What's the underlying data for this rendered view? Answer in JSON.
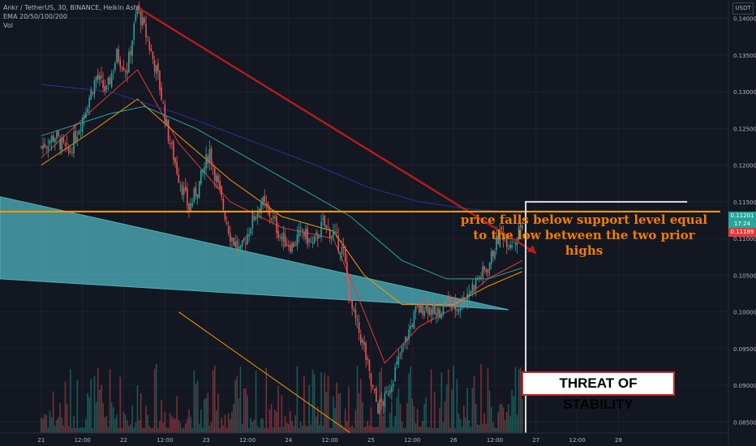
{
  "header": {
    "symbol_line": "Ankr / TetherUS, 30, BINANCE, Heikin Ashi",
    "ema_line": "EMA 20/50/100/200",
    "vol_line": "Vol",
    "currency": "USDT"
  },
  "price_tags": {
    "last_price": "0.11201",
    "countdown": "17:24",
    "ema_price": "0.11189"
  },
  "annotations": {
    "support_note_line1": "price falls below support level equal",
    "support_note_line2": "to the low between the two prior highs",
    "threat_label": "THREAT OF STABILITY"
  },
  "colors": {
    "background": "#131722",
    "up": "#26a69a",
    "down": "#ef5350",
    "resistance_line": "#b71c1c",
    "support_line": "#ff9800",
    "wedge_fill": "#4fb3bf",
    "ema20": "#e53935",
    "ema50": "#ff9800",
    "ema100": "#26a69a",
    "ema200": "#283593",
    "target_box": "#e0e0e0"
  },
  "chart_data": {
    "type": "candlestick",
    "style": "Heikin Ashi",
    "timeframe": "30",
    "exchange": "BINANCE",
    "y_axis": {
      "ticks": [
        "0.14000",
        "0.13500",
        "0.13000",
        "0.12500",
        "0.12000",
        "0.11500",
        "0.11000",
        "0.10500",
        "0.10000",
        "0.09500",
        "0.09000",
        "0.08500"
      ],
      "ylim": [
        0.0835,
        0.1425
      ]
    },
    "x_axis": {
      "ticks": [
        "21",
        "12:00",
        "22",
        "12:00",
        "23",
        "12:00",
        "24",
        "12:00",
        "25",
        "12:00",
        "26",
        "12:00",
        "27",
        "12:00",
        "28"
      ],
      "xlim": [
        -12,
        200
      ]
    },
    "price_path": [
      [
        0,
        0.1225
      ],
      [
        4,
        0.124
      ],
      [
        8,
        0.1215
      ],
      [
        12,
        0.1265
      ],
      [
        16,
        0.132
      ],
      [
        19,
        0.13
      ],
      [
        22,
        0.135
      ],
      [
        25,
        0.133
      ],
      [
        28,
        0.1415
      ],
      [
        31,
        0.137
      ],
      [
        34,
        0.132
      ],
      [
        37,
        0.124
      ],
      [
        40,
        0.1185
      ],
      [
        43,
        0.114
      ],
      [
        46,
        0.1175
      ],
      [
        49,
        0.122
      ],
      [
        52,
        0.116
      ],
      [
        55,
        0.1105
      ],
      [
        58,
        0.108
      ],
      [
        61,
        0.112
      ],
      [
        64,
        0.115
      ],
      [
        67,
        0.113
      ],
      [
        70,
        0.11
      ],
      [
        73,
        0.109
      ],
      [
        76,
        0.111
      ],
      [
        79,
        0.109
      ],
      [
        82,
        0.112
      ],
      [
        85,
        0.1105
      ],
      [
        88,
        0.108
      ],
      [
        90,
        0.101
      ],
      [
        92,
        0.098
      ],
      [
        94,
        0.095
      ],
      [
        96,
        0.09
      ],
      [
        98,
        0.087
      ],
      [
        100,
        0.088
      ],
      [
        103,
        0.092
      ],
      [
        106,
        0.096
      ],
      [
        109,
        0.1
      ],
      [
        112,
        0.101
      ],
      [
        115,
        0.0995
      ],
      [
        118,
        0.1015
      ],
      [
        121,
        0.1005
      ],
      [
        124,
        0.1025
      ],
      [
        127,
        0.1045
      ],
      [
        130,
        0.106
      ],
      [
        132,
        0.109
      ],
      [
        134,
        0.111
      ],
      [
        136,
        0.1095
      ],
      [
        138,
        0.11
      ],
      [
        140,
        0.112
      ]
    ],
    "ema_series": [
      {
        "values": [
          [
            0,
            0.121
          ],
          [
            16,
            0.128
          ],
          [
            28,
            0.133
          ],
          [
            40,
            0.123
          ],
          [
            55,
            0.115
          ],
          [
            70,
            0.1115
          ],
          [
            85,
            0.11
          ],
          [
            94,
            0.1
          ],
          [
            100,
            0.093
          ],
          [
            110,
            0.098
          ],
          [
            120,
            0.1005
          ],
          [
            130,
            0.1045
          ],
          [
            140,
            0.107
          ]
        ]
      },
      {
        "values": [
          [
            0,
            0.12
          ],
          [
            16,
            0.125
          ],
          [
            28,
            0.129
          ],
          [
            40,
            0.124
          ],
          [
            55,
            0.118
          ],
          [
            70,
            0.113
          ],
          [
            85,
            0.111
          ],
          [
            94,
            0.105
          ],
          [
            105,
            0.101
          ],
          [
            120,
            0.101
          ],
          [
            130,
            0.1035
          ],
          [
            140,
            0.1055
          ]
        ]
      },
      {
        "values": [
          [
            0,
            0.124
          ],
          [
            20,
            0.127
          ],
          [
            30,
            0.128
          ],
          [
            45,
            0.125
          ],
          [
            60,
            0.121
          ],
          [
            75,
            0.117
          ],
          [
            90,
            0.113
          ],
          [
            105,
            0.107
          ],
          [
            118,
            0.1045
          ],
          [
            130,
            0.1045
          ],
          [
            140,
            0.106
          ]
        ]
      },
      {
        "values": [
          [
            0,
            0.131
          ],
          [
            20,
            0.13
          ],
          [
            40,
            0.127
          ],
          [
            60,
            0.1235
          ],
          [
            80,
            0.12
          ],
          [
            95,
            0.117
          ],
          [
            110,
            0.115
          ],
          [
            125,
            0.114
          ],
          [
            140,
            0.1135
          ]
        ]
      }
    ],
    "drawings": {
      "resistance_trendline": [
        [
          28,
          0.1415
        ],
        [
          144,
          0.108
        ]
      ],
      "support_level": 0.11367,
      "wedge": {
        "upper": [
          [
            -12,
            0.1157
          ],
          [
            136,
            0.1003
          ]
        ],
        "lower": [
          [
            -12,
            0.1045
          ],
          [
            136,
            0.1003
          ]
        ]
      },
      "lower_trendline": [
        [
          40,
          0.1
        ],
        [
          90,
          0.0835
        ]
      ],
      "target_box": {
        "x": [
          141,
          188
        ],
        "y": [
          0.0835,
          0.115
        ]
      },
      "arrow": [
        [
          136,
          0.1122
        ],
        [
          144,
          0.108
        ]
      ]
    }
  }
}
